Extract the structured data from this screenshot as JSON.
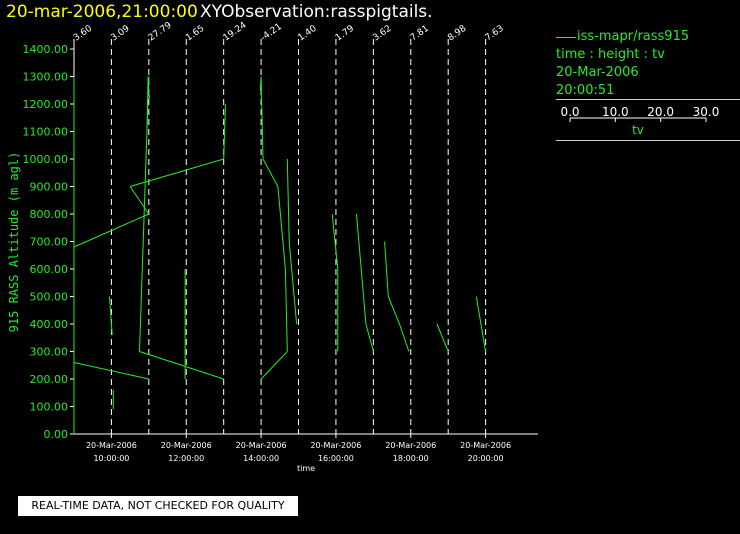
{
  "header": {
    "time_label": "20-mar-2006,21:00:00",
    "observation_label": "XYObservation:rasspigtails."
  },
  "legend": {
    "series_name": "iss-mapr/rass915",
    "line1": "time : height : tv",
    "line2": "20-Mar-2006",
    "line3": "20:00:51",
    "scale_ticks": [
      "0.0",
      "10.0",
      "20.0",
      "30.0"
    ],
    "scale_label": "tv"
  },
  "footer": {
    "qc_notice": "REAL-TIME DATA, NOT CHECKED FOR QUALITY"
  },
  "colors": {
    "background": "#000000",
    "series": "#22ee22",
    "axis": "#ffffff",
    "title_time": "#ffff00",
    "title_obs": "#ffffff",
    "ylabel": "#22ee22"
  },
  "chart_data": {
    "type": "line",
    "title": "",
    "xlabel": "time",
    "ylabel": "915 RASS Altitude (m agl)",
    "ylim": [
      0,
      1400
    ],
    "yticks": [
      0,
      100,
      200,
      300,
      400,
      500,
      600,
      700,
      800,
      900,
      1000,
      1100,
      1200,
      1300,
      1400
    ],
    "ytick_labels": [
      "0.00",
      "100.00",
      "200.00",
      "300.00",
      "400.00",
      "500.00",
      "600.00",
      "700.00",
      "800.00",
      "900.00",
      "1000.00",
      "1100.00",
      "1200.00",
      "1300.00",
      "1400.00"
    ],
    "xlim_hours": [
      9.0,
      21.4
    ],
    "xticks_hours": [
      10,
      12,
      14,
      16,
      18,
      20
    ],
    "xtick_labels": [
      [
        "20-Mar-2006",
        "10:00:00"
      ],
      [
        "20-Mar-2006",
        "12:00:00"
      ],
      [
        "20-Mar-2006",
        "14:00:00"
      ],
      [
        "20-Mar-2006",
        "16:00:00"
      ],
      [
        "20-Mar-2006",
        "18:00:00"
      ],
      [
        "20-Mar-2006",
        "20:00:00"
      ]
    ],
    "profile_times_hours": [
      9.0,
      10.0,
      11.0,
      12.0,
      13.0,
      14.0,
      15.0,
      16.0,
      17.0,
      18.0,
      19.0,
      20.0
    ],
    "profile_value_labels": [
      "3.60",
      "3.09",
      "27.79",
      "1.65",
      "19.24",
      "-4.21",
      "1.40",
      "1.79",
      "3.62",
      "7.81",
      "8.98",
      "7.63"
    ],
    "series": [
      {
        "name": "iss-mapr/rass915",
        "segments": [
          {
            "times_hours": [
              9.0,
              9.0,
              9.0,
              9.0,
              9.0
            ],
            "heights": [
              0,
              200,
              500,
              900,
              1300
            ]
          },
          {
            "times_hours": [
              9.0,
              11.0
            ],
            "heights": [
              260,
              200
            ]
          },
          {
            "times_hours": [
              9.0,
              11.0
            ],
            "heights": [
              680,
              800
            ]
          },
          {
            "times_hours": [
              9.95,
              10.02
            ],
            "heights": [
              500,
              360
            ]
          },
          {
            "times_hours": [
              10.05,
              10.05
            ],
            "heights": [
              160,
              90
            ]
          },
          {
            "times_hours": [
              10.95,
              10.98,
              11.0,
              11.02
            ],
            "heights": [
              1100,
              1300,
              1240,
              1220
            ]
          },
          {
            "times_hours": [
              10.5,
              13.0
            ],
            "heights": [
              900,
              1000
            ]
          },
          {
            "times_hours": [
              10.5,
              11.0
            ],
            "heights": [
              900,
              800
            ]
          },
          {
            "times_hours": [
              10.75,
              13.0
            ],
            "heights": [
              300,
              200
            ]
          },
          {
            "times_hours": [
              10.75,
              11.0
            ],
            "heights": [
              300,
              1300
            ]
          },
          {
            "times_hours": [
              11.97,
              11.97
            ],
            "heights": [
              600,
              200
            ]
          },
          {
            "times_hours": [
              13.0,
              13.05
            ],
            "heights": [
              1000,
              1200
            ]
          },
          {
            "times_hours": [
              13.98,
              14.0,
              14.05,
              14.45,
              14.65,
              14.7
            ],
            "heights": [
              1250,
              1300,
              1000,
              900,
              600,
              300
            ]
          },
          {
            "times_hours": [
              14.0,
              14.7
            ],
            "heights": [
              200,
              300
            ]
          },
          {
            "times_hours": [
              14.7,
              14.75,
              14.95
            ],
            "heights": [
              1000,
              700,
              400
            ]
          },
          {
            "times_hours": [
              15.9,
              16.05,
              16.05
            ],
            "heights": [
              800,
              600,
              300
            ]
          },
          {
            "times_hours": [
              16.55,
              16.8,
              17.0
            ],
            "heights": [
              800,
              400,
              300
            ]
          },
          {
            "times_hours": [
              17.3,
              17.4,
              17.7,
              17.95
            ],
            "heights": [
              700,
              500,
              400,
              300
            ]
          },
          {
            "times_hours": [
              18.7,
              19.0
            ],
            "heights": [
              400,
              300
            ]
          },
          {
            "times_hours": [
              19.75,
              20.0
            ],
            "heights": [
              500,
              300
            ]
          }
        ]
      }
    ],
    "grid": false,
    "legend_position": "top-right"
  }
}
